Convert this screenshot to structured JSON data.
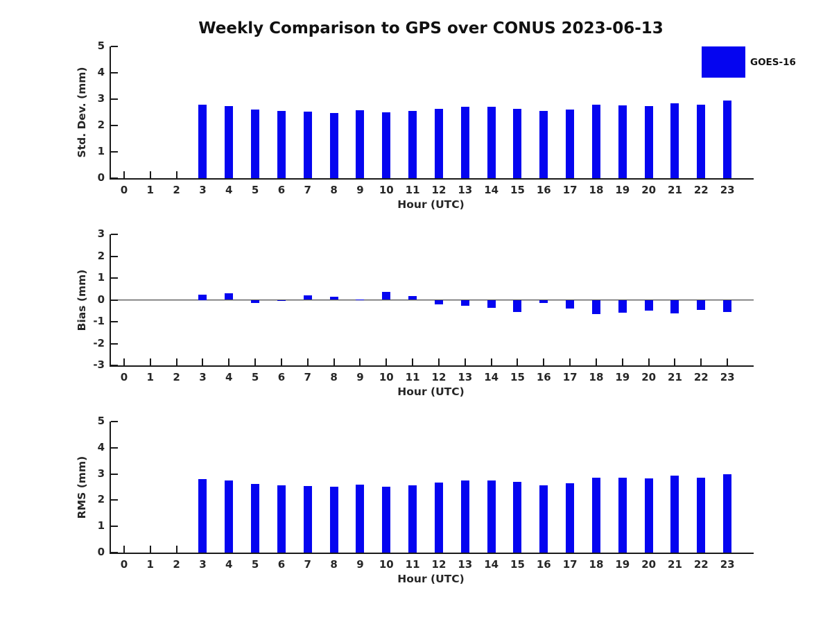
{
  "title": "Weekly Comparison to GPS over CONUS 2023-06-13",
  "legend": {
    "label": "GOES-16",
    "position": "top-right"
  },
  "colors": {
    "bar": "#0505f0",
    "axis": "#1a1a1a",
    "text": "#262626"
  },
  "chart_data": [
    {
      "type": "bar",
      "title": "",
      "ylabel": "Std. Dev. (mm)",
      "xlabel": "Hour (UTC)",
      "ylim": [
        0,
        5
      ],
      "yticks": [
        0,
        1,
        2,
        3,
        4,
        5
      ],
      "xlim": [
        -0.5,
        24
      ],
      "grid": false,
      "series_name": "GOES-16",
      "categories": [
        0,
        1,
        2,
        3,
        4,
        5,
        6,
        7,
        8,
        9,
        10,
        11,
        12,
        13,
        14,
        15,
        16,
        17,
        18,
        19,
        20,
        21,
        22,
        23
      ],
      "values": [
        null,
        null,
        null,
        2.78,
        2.73,
        2.6,
        2.55,
        2.52,
        2.48,
        2.58,
        2.5,
        2.56,
        2.64,
        2.72,
        2.72,
        2.63,
        2.54,
        2.61,
        2.79,
        2.76,
        2.74,
        2.84,
        2.79,
        2.96
      ]
    },
    {
      "type": "bar",
      "title": "",
      "ylabel": "Bias (mm)",
      "xlabel": "Hour (UTC)",
      "ylim": [
        -3,
        3
      ],
      "yticks": [
        -3,
        -2,
        -1,
        0,
        1,
        2,
        3
      ],
      "xlim": [
        -0.5,
        24
      ],
      "grid": false,
      "zero_line": true,
      "series_name": "GOES-16",
      "categories": [
        0,
        1,
        2,
        3,
        4,
        5,
        6,
        7,
        8,
        9,
        10,
        11,
        12,
        13,
        14,
        15,
        16,
        17,
        18,
        19,
        20,
        21,
        22,
        23
      ],
      "values": [
        null,
        null,
        null,
        0.25,
        0.3,
        -0.15,
        -0.03,
        0.22,
        0.15,
        0.03,
        0.35,
        0.17,
        -0.21,
        -0.26,
        -0.36,
        -0.57,
        -0.15,
        -0.4,
        -0.64,
        -0.6,
        -0.5,
        -0.62,
        -0.45,
        -0.55
      ]
    },
    {
      "type": "bar",
      "title": "",
      "ylabel": "RMS (mm)",
      "xlabel": "Hour (UTC)",
      "ylim": [
        0,
        5
      ],
      "yticks": [
        0,
        1,
        2,
        3,
        4,
        5
      ],
      "xlim": [
        -0.5,
        24
      ],
      "grid": false,
      "series_name": "GOES-16",
      "categories": [
        0,
        1,
        2,
        3,
        4,
        5,
        6,
        7,
        8,
        9,
        10,
        11,
        12,
        13,
        14,
        15,
        16,
        17,
        18,
        19,
        20,
        21,
        22,
        23
      ],
      "values": [
        null,
        null,
        null,
        2.8,
        2.75,
        2.62,
        2.56,
        2.55,
        2.51,
        2.59,
        2.52,
        2.57,
        2.67,
        2.75,
        2.75,
        2.71,
        2.57,
        2.64,
        2.87,
        2.85,
        2.82,
        2.94,
        2.86,
        2.99
      ]
    }
  ]
}
